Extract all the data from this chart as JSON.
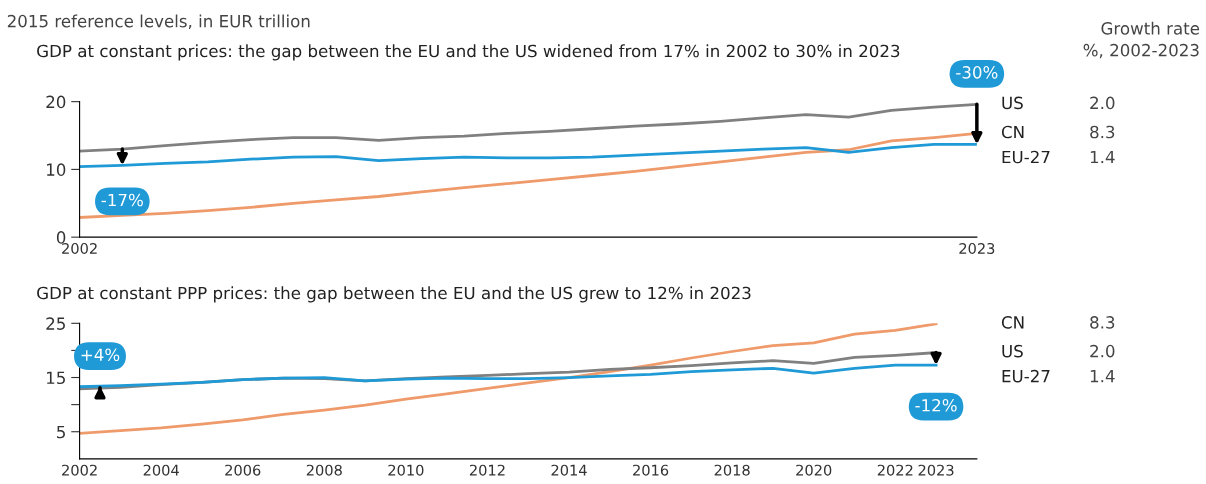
{
  "chart_data": [
    {
      "type": "line",
      "subtitle": "2015 reference levels, in EUR trillion",
      "title": "GDP at constant prices: the gap between the EU and the US widened from 17% in 2002 to 30% in 2023",
      "x": [
        2002,
        2003,
        2004,
        2005,
        2006,
        2007,
        2008,
        2009,
        2010,
        2011,
        2012,
        2013,
        2014,
        2015,
        2016,
        2017,
        2018,
        2019,
        2020,
        2021,
        2022,
        2023
      ],
      "series": [
        {
          "name": "US",
          "color": "#808080",
          "values": [
            12.7,
            13.0,
            13.5,
            14.0,
            14.4,
            14.7,
            14.7,
            14.3,
            14.7,
            14.9,
            15.3,
            15.6,
            16.0,
            16.4,
            16.7,
            17.1,
            17.6,
            18.1,
            17.7,
            18.7,
            19.2,
            19.6
          ]
        },
        {
          "name": "CN",
          "color": "#ef9a6a",
          "values": [
            2.9,
            3.2,
            3.5,
            3.9,
            4.4,
            5.0,
            5.5,
            6.0,
            6.7,
            7.3,
            7.9,
            8.5,
            9.1,
            9.7,
            10.4,
            11.1,
            11.8,
            12.5,
            12.9,
            14.2,
            14.7,
            15.3
          ]
        },
        {
          "name": "EU-27",
          "color": "#1f9ad6",
          "values": [
            10.4,
            10.6,
            10.9,
            11.1,
            11.5,
            11.8,
            11.9,
            11.3,
            11.6,
            11.8,
            11.7,
            11.7,
            11.8,
            12.1,
            12.4,
            12.7,
            13.0,
            13.2,
            12.5,
            13.2,
            13.7,
            13.7
          ]
        }
      ],
      "xlim": [
        2002,
        2023
      ],
      "xticks": [
        2002,
        2023
      ],
      "ylim": [
        0,
        20
      ],
      "yticks": [
        0,
        10,
        20
      ],
      "grid": false,
      "legend": false,
      "marker": "none",
      "line_style": "solid",
      "annotations": [
        {
          "text": "-17%",
          "x": 2003,
          "y": 10.6
        },
        {
          "text": "-30%",
          "x": 2023,
          "y": 19.6
        },
        "Growth rate",
        "%, 2002-2023",
        "2.0",
        "8.3",
        "1.4"
      ]
    },
    {
      "type": "line",
      "title": "GDP at constant PPP prices: the gap between the EU and the US grew to 12% in 2023",
      "x": [
        2002,
        2003,
        2004,
        2005,
        2006,
        2007,
        2008,
        2009,
        2010,
        2011,
        2012,
        2013,
        2014,
        2015,
        2016,
        2017,
        2018,
        2019,
        2020,
        2021,
        2022,
        2023
      ],
      "series": [
        {
          "name": "CN",
          "color": "#ef9a6a",
          "values": [
            4.7,
            5.2,
            5.7,
            6.4,
            7.2,
            8.2,
            9.0,
            9.9,
            11.0,
            12.0,
            13.0,
            14.0,
            15.0,
            16.1,
            17.3,
            18.6,
            19.8,
            20.9,
            21.4,
            23.0,
            23.7,
            24.9
          ]
        },
        {
          "name": "US",
          "color": "#808080",
          "values": [
            12.9,
            13.2,
            13.7,
            14.1,
            14.6,
            14.9,
            14.8,
            14.4,
            14.8,
            15.1,
            15.4,
            15.7,
            16.0,
            16.5,
            16.8,
            17.2,
            17.7,
            18.1,
            17.6,
            18.7,
            19.1,
            19.6
          ]
        },
        {
          "name": "EU-27",
          "color": "#1f9ad6",
          "values": [
            13.3,
            13.5,
            13.8,
            14.1,
            14.6,
            14.9,
            15.0,
            14.4,
            14.7,
            14.9,
            14.8,
            14.8,
            15.0,
            15.3,
            15.6,
            16.1,
            16.4,
            16.7,
            15.8,
            16.7,
            17.3,
            17.3
          ]
        }
      ],
      "xlim": [
        2002,
        2024
      ],
      "xticks": [
        2002,
        2004,
        2006,
        2008,
        2010,
        2012,
        2014,
        2016,
        2018,
        2020,
        2022,
        2023
      ],
      "ylim": [
        0,
        25
      ],
      "yticks": [
        5,
        {
          "value": 10,
          "label": null
        },
        15,
        {
          "value": 20,
          "label": null
        },
        25
      ],
      "grid": false,
      "legend": false,
      "marker": "none",
      "line_style": "solid",
      "annotations": [
        {
          "text": "+4%",
          "x": 2002.5,
          "y": 13.3
        },
        {
          "text": "-12%",
          "x": 2023,
          "y": 17.3
        },
        "8.3",
        "2.0",
        "1.4"
      ]
    }
  ]
}
